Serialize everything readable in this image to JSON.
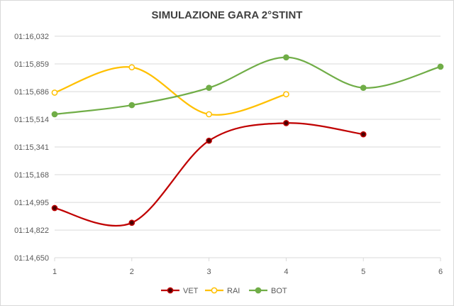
{
  "chart_data": {
    "type": "line",
    "title": "SIMULAZIONE GARA 2°STINT",
    "x_ticks": [
      "1",
      "2",
      "3",
      "4",
      "5",
      "6"
    ],
    "y_ticks": [
      "01:14,650",
      "01:14,822",
      "01:14,995",
      "01:15,168",
      "01:15,341",
      "01:15,514",
      "01:15,686",
      "01:15,859",
      "01:16,032"
    ],
    "ylim": [
      74.65,
      76.032
    ],
    "y_tick_values": [
      74.65,
      74.822,
      74.995,
      75.168,
      75.341,
      75.514,
      75.686,
      75.859,
      76.032
    ],
    "xlim": [
      1,
      6
    ],
    "grid": "horizontal",
    "legend_position": "bottom",
    "series": [
      {
        "name": "VET",
        "color": "#c00000",
        "marker_color": "#4a0000",
        "x": [
          1,
          2,
          3,
          4,
          5
        ],
        "y": [
          74.96,
          74.868,
          75.38,
          75.49,
          75.42
        ]
      },
      {
        "name": "RAI",
        "color": "#ffc000",
        "marker_color": "#ffffff",
        "x": [
          1,
          2,
          3,
          4
        ],
        "y": [
          75.68,
          75.838,
          75.545,
          75.67
        ]
      },
      {
        "name": "BOT",
        "color": "#70ad47",
        "marker_color": "#70ad47",
        "x": [
          1,
          2,
          3,
          4,
          5,
          6
        ],
        "y": [
          75.545,
          75.602,
          75.71,
          75.9,
          75.71,
          75.842
        ]
      }
    ]
  }
}
